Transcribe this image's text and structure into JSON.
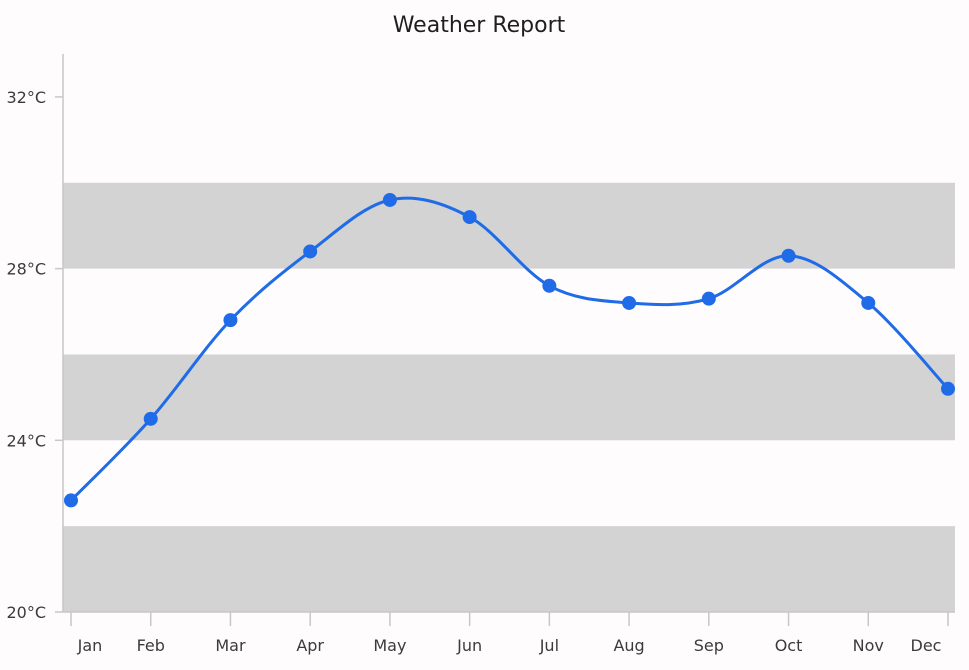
{
  "chart_data": {
    "type": "line",
    "title": "Weather Report",
    "xlabel": "",
    "ylabel": "",
    "categories": [
      "Jan",
      "Feb",
      "Mar",
      "Apr",
      "May",
      "Jun",
      "Jul",
      "Aug",
      "Sep",
      "Oct",
      "Nov",
      "Dec"
    ],
    "series": [
      {
        "values": [
          22.6,
          24.5,
          26.8,
          28.4,
          29.6,
          29.2,
          27.6,
          27.2,
          27.3,
          28.3,
          27.2,
          25.2
        ],
        "color": "#1f6be8"
      }
    ],
    "ylim": [
      20,
      33
    ],
    "yticks": [
      20,
      24,
      28,
      32
    ],
    "ytick_labels": [
      "20°C",
      "24°C",
      "28°C",
      "32°C"
    ],
    "bands": [
      [
        20,
        22
      ],
      [
        24,
        26
      ],
      [
        28,
        30
      ]
    ],
    "band_color": "#d3d3d3",
    "grid": false,
    "legend": "none"
  }
}
